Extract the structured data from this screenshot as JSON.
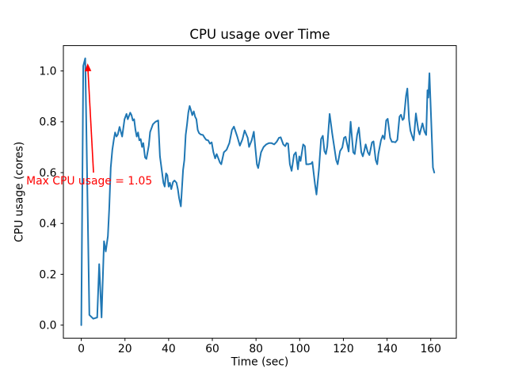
{
  "chart_data": {
    "type": "line",
    "title": "CPU usage over Time",
    "xlabel": "Time (sec)",
    "ylabel": "CPU usage (cores)",
    "line_color": "#1f77b4",
    "background_color": "#ffffff",
    "grid": false,
    "legend": "none",
    "xlim": [
      -8.2,
      171.7
    ],
    "ylim": [
      -0.0515,
      1.0998
    ],
    "x_ticks": [
      "0",
      "20",
      "40",
      "60",
      "80",
      "100",
      "120",
      "140",
      "160"
    ],
    "y_ticks": [
      "0.0",
      "0.2",
      "0.4",
      "0.6",
      "0.8",
      "1.0"
    ],
    "annotation": {
      "text": "Max CPU usage = 1.05",
      "color": "#ff0000",
      "xy": [
        2.9,
        1.03
      ],
      "arrow_tail": [
        5.6,
        0.6
      ],
      "text_pos": [
        -25.2,
        0.554
      ]
    },
    "points": [
      [
        0.0,
        0.0
      ],
      [
        0.9,
        1.02
      ],
      [
        1.8,
        1.05
      ],
      [
        3.7,
        0.04
      ],
      [
        5.5,
        0.025
      ],
      [
        7.3,
        0.03
      ],
      [
        8.2,
        0.24
      ],
      [
        9.3,
        0.03
      ],
      [
        10.4,
        0.33
      ],
      [
        11.2,
        0.29
      ],
      [
        12.2,
        0.35
      ],
      [
        12.8,
        0.46
      ],
      [
        13.5,
        0.62
      ],
      [
        14.2,
        0.69
      ],
      [
        14.9,
        0.73
      ],
      [
        15.5,
        0.758
      ],
      [
        16.1,
        0.742
      ],
      [
        16.7,
        0.75
      ],
      [
        17.5,
        0.78
      ],
      [
        18.7,
        0.742
      ],
      [
        19.8,
        0.81
      ],
      [
        20.7,
        0.831
      ],
      [
        21.3,
        0.81
      ],
      [
        22.4,
        0.836
      ],
      [
        23.0,
        0.826
      ],
      [
        23.6,
        0.805
      ],
      [
        24.2,
        0.81
      ],
      [
        24.8,
        0.768
      ],
      [
        25.4,
        0.742
      ],
      [
        26.0,
        0.758
      ],
      [
        26.6,
        0.727
      ],
      [
        27.2,
        0.732
      ],
      [
        27.8,
        0.701
      ],
      [
        28.4,
        0.716
      ],
      [
        29.2,
        0.66
      ],
      [
        29.8,
        0.654
      ],
      [
        30.9,
        0.706
      ],
      [
        31.5,
        0.76
      ],
      [
        32.8,
        0.79
      ],
      [
        34.0,
        0.8
      ],
      [
        35.2,
        0.805
      ],
      [
        36.0,
        0.664
      ],
      [
        37.6,
        0.56
      ],
      [
        38.2,
        0.545
      ],
      [
        38.8,
        0.597
      ],
      [
        39.4,
        0.59
      ],
      [
        40.0,
        0.545
      ],
      [
        40.6,
        0.56
      ],
      [
        41.2,
        0.535
      ],
      [
        42.0,
        0.563
      ],
      [
        42.7,
        0.569
      ],
      [
        43.6,
        0.56
      ],
      [
        44.2,
        0.535
      ],
      [
        44.8,
        0.5
      ],
      [
        45.6,
        0.467
      ],
      [
        46.6,
        0.61
      ],
      [
        47.2,
        0.649
      ],
      [
        47.8,
        0.748
      ],
      [
        48.4,
        0.79
      ],
      [
        49.0,
        0.836
      ],
      [
        49.6,
        0.862
      ],
      [
        50.2,
        0.846
      ],
      [
        50.8,
        0.826
      ],
      [
        51.5,
        0.841
      ],
      [
        52.1,
        0.82
      ],
      [
        52.7,
        0.81
      ],
      [
        53.3,
        0.768
      ],
      [
        53.9,
        0.756
      ],
      [
        54.7,
        0.75
      ],
      [
        55.7,
        0.748
      ],
      [
        56.5,
        0.737
      ],
      [
        57.2,
        0.729
      ],
      [
        58.1,
        0.727
      ],
      [
        58.9,
        0.714
      ],
      [
        59.7,
        0.719
      ],
      [
        60.5,
        0.68
      ],
      [
        61.3,
        0.656
      ],
      [
        62.0,
        0.673
      ],
      [
        63.5,
        0.639
      ],
      [
        64.1,
        0.633
      ],
      [
        65.3,
        0.68
      ],
      [
        66.5,
        0.69
      ],
      [
        67.8,
        0.716
      ],
      [
        69.0,
        0.768
      ],
      [
        69.9,
        0.781
      ],
      [
        71.4,
        0.742
      ],
      [
        72.6,
        0.706
      ],
      [
        73.8,
        0.732
      ],
      [
        74.8,
        0.766
      ],
      [
        76.2,
        0.737
      ],
      [
        76.8,
        0.701
      ],
      [
        78.0,
        0.727
      ],
      [
        79.0,
        0.761
      ],
      [
        80.4,
        0.633
      ],
      [
        81.0,
        0.618
      ],
      [
        82.3,
        0.68
      ],
      [
        83.5,
        0.701
      ],
      [
        84.7,
        0.711
      ],
      [
        85.9,
        0.716
      ],
      [
        87.1,
        0.716
      ],
      [
        88.3,
        0.711
      ],
      [
        89.5,
        0.722
      ],
      [
        90.5,
        0.737
      ],
      [
        91.3,
        0.739
      ],
      [
        92.5,
        0.711
      ],
      [
        93.4,
        0.704
      ],
      [
        94.0,
        0.716
      ],
      [
        94.7,
        0.714
      ],
      [
        95.5,
        0.633
      ],
      [
        96.3,
        0.607
      ],
      [
        97.4,
        0.67
      ],
      [
        98.2,
        0.68
      ],
      [
        99.2,
        0.613
      ],
      [
        99.8,
        0.664
      ],
      [
        100.4,
        0.646
      ],
      [
        101.6,
        0.711
      ],
      [
        102.4,
        0.704
      ],
      [
        103.0,
        0.633
      ],
      [
        104.0,
        0.633
      ],
      [
        105.2,
        0.635
      ],
      [
        105.8,
        0.642
      ],
      [
        107.0,
        0.555
      ],
      [
        107.7,
        0.514
      ],
      [
        108.8,
        0.613
      ],
      [
        109.8,
        0.732
      ],
      [
        110.6,
        0.745
      ],
      [
        111.3,
        0.685
      ],
      [
        112.0,
        0.673
      ],
      [
        112.6,
        0.703
      ],
      [
        113.7,
        0.831
      ],
      [
        114.9,
        0.753
      ],
      [
        115.6,
        0.714
      ],
      [
        116.7,
        0.649
      ],
      [
        117.4,
        0.633
      ],
      [
        118.5,
        0.685
      ],
      [
        119.5,
        0.699
      ],
      [
        120.3,
        0.737
      ],
      [
        121.0,
        0.741
      ],
      [
        121.8,
        0.709
      ],
      [
        122.4,
        0.683
      ],
      [
        123.3,
        0.8
      ],
      [
        124.5,
        0.68
      ],
      [
        125.2,
        0.673
      ],
      [
        126.3,
        0.748
      ],
      [
        127.1,
        0.777
      ],
      [
        128.2,
        0.68
      ],
      [
        128.9,
        0.664
      ],
      [
        129.6,
        0.687
      ],
      [
        130.2,
        0.711
      ],
      [
        131.2,
        0.68
      ],
      [
        131.9,
        0.669
      ],
      [
        133.1,
        0.719
      ],
      [
        133.8,
        0.723
      ],
      [
        134.8,
        0.649
      ],
      [
        135.5,
        0.633
      ],
      [
        136.0,
        0.673
      ],
      [
        137.2,
        0.727
      ],
      [
        138.0,
        0.746
      ],
      [
        138.8,
        0.732
      ],
      [
        139.6,
        0.805
      ],
      [
        140.3,
        0.812
      ],
      [
        141.4,
        0.737
      ],
      [
        142.2,
        0.721
      ],
      [
        143.0,
        0.721
      ],
      [
        143.8,
        0.719
      ],
      [
        144.7,
        0.729
      ],
      [
        145.7,
        0.82
      ],
      [
        146.4,
        0.828
      ],
      [
        147.1,
        0.807
      ],
      [
        147.7,
        0.813
      ],
      [
        148.7,
        0.903
      ],
      [
        149.3,
        0.931
      ],
      [
        150.1,
        0.807
      ],
      [
        150.7,
        0.765
      ],
      [
        151.4,
        0.746
      ],
      [
        152.2,
        0.727
      ],
      [
        153.2,
        0.833
      ],
      [
        154.3,
        0.768
      ],
      [
        154.9,
        0.75
      ],
      [
        155.6,
        0.774
      ],
      [
        156.2,
        0.794
      ],
      [
        157.2,
        0.76
      ],
      [
        157.9,
        0.748
      ],
      [
        158.5,
        0.924
      ],
      [
        158.9,
        0.895
      ],
      [
        159.4,
        0.991
      ],
      [
        161.0,
        0.62
      ],
      [
        161.6,
        0.6
      ]
    ]
  }
}
